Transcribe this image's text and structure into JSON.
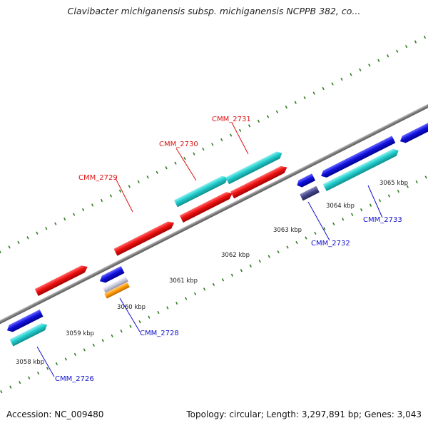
{
  "title": "Clavibacter michiganensis subsp. michiganensis NCPPB 382, co...",
  "accession": "Accession: NC_009480",
  "topology": "Topology: circular; Length: 3,297,891 bp; Genes: 3,043",
  "colors": {
    "background": "#ffffff",
    "backbone": "#8a8a8a",
    "tick": "#2f7d1f",
    "gene_red": "#ee1111",
    "gene_cyan": "#22cccc",
    "gene_blue": "#1111dd",
    "gene_slate": "#44448a",
    "gene_silver": "#c8c8dc",
    "gene_orange": "#ff9900",
    "label_red": "#dd1111",
    "label_blue": "#1111cc",
    "tick_label": "#222222"
  },
  "scale_labels": [
    "3058 kbp",
    "3059 kbp",
    "3060 kbp",
    "3061 kbp",
    "3062 kbp",
    "3063 kbp",
    "3064 kbp",
    "3065 kbp"
  ],
  "gene_labels": [
    {
      "text": "CMM_2726",
      "color": "blue"
    },
    {
      "text": "CMM_2728",
      "color": "blue"
    },
    {
      "text": "CMM_2729",
      "color": "red"
    },
    {
      "text": "CMM_2730",
      "color": "red"
    },
    {
      "text": "CMM_2731",
      "color": "red"
    },
    {
      "text": "CMM_2732",
      "color": "blue"
    },
    {
      "text": "CMM_2733",
      "color": "blue"
    }
  ]
}
